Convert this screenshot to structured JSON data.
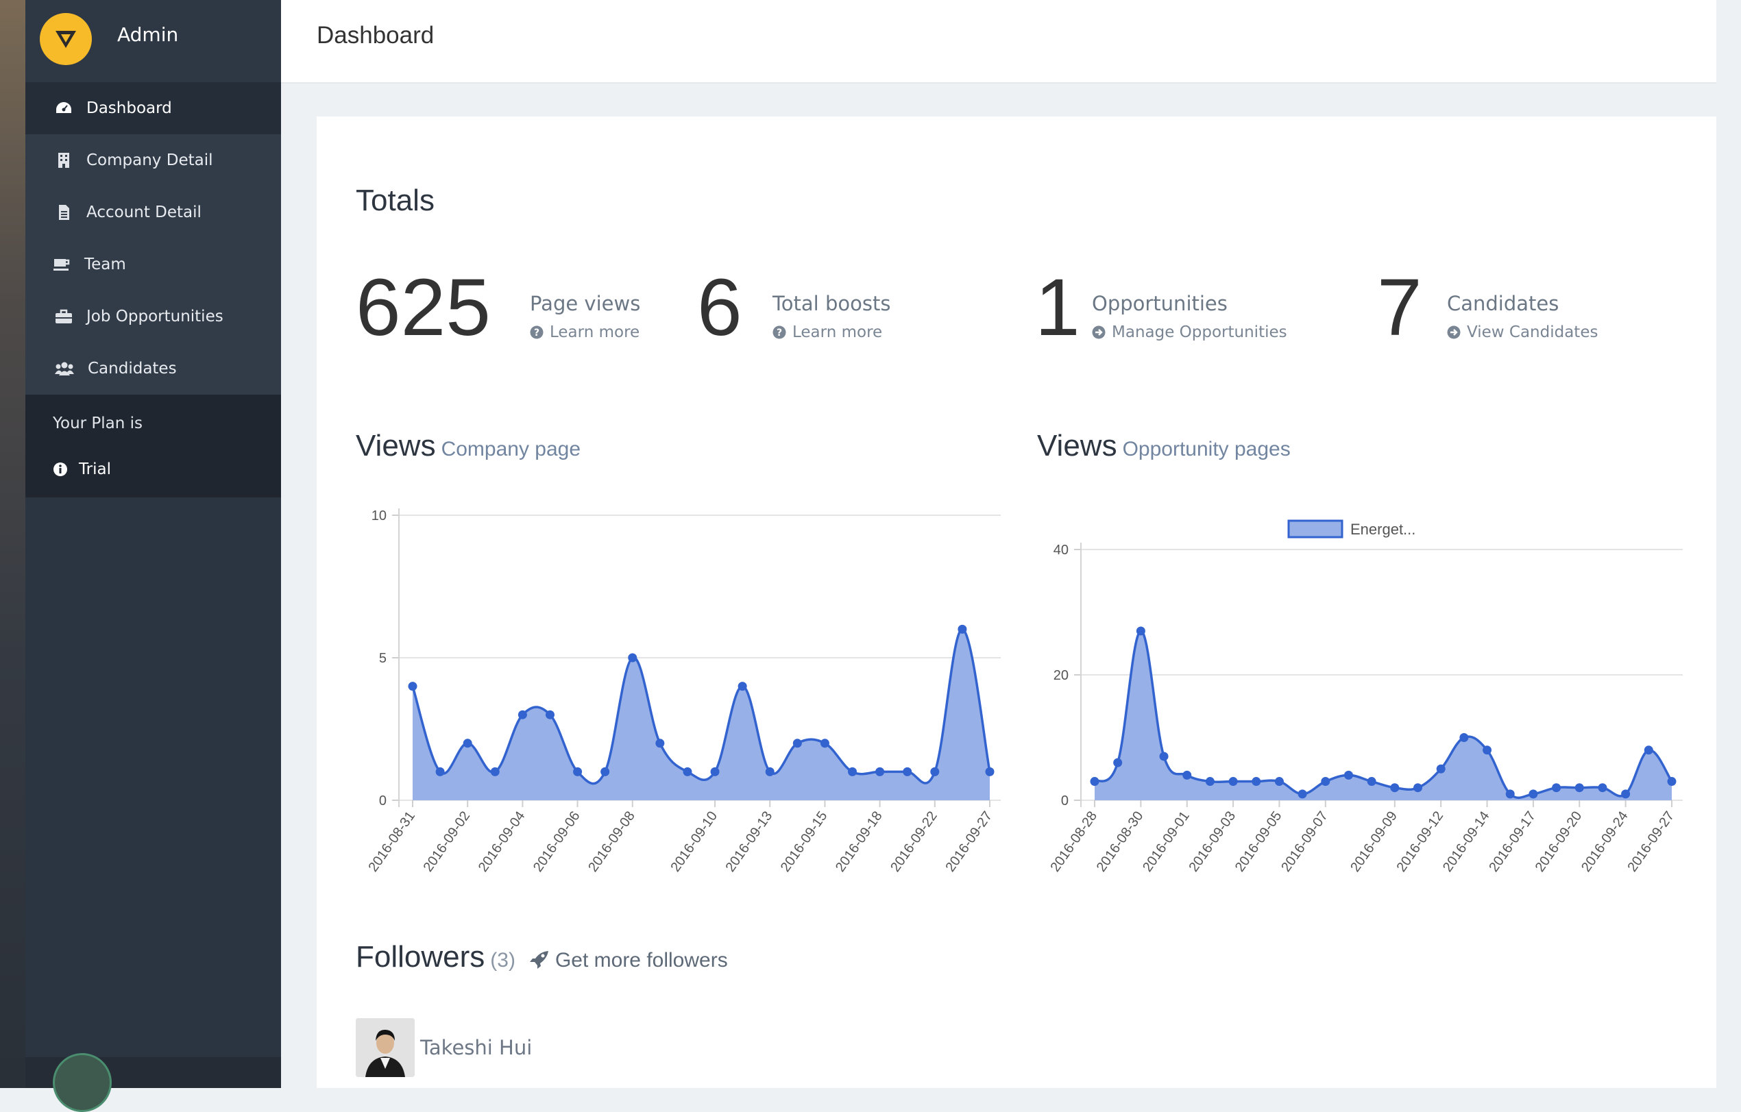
{
  "app": {
    "name": "Admin"
  },
  "header": {
    "title": "Dashboard"
  },
  "sidebar": {
    "items": [
      {
        "label": "Dashboard",
        "icon": "dashboard-icon",
        "active": true
      },
      {
        "label": "Company Detail",
        "icon": "building-icon"
      },
      {
        "label": "Account Detail",
        "icon": "document-icon"
      },
      {
        "label": "Team",
        "icon": "coffee-icon"
      },
      {
        "label": "Job Opportunities",
        "icon": "briefcase-icon"
      },
      {
        "label": "Candidates",
        "icon": "users-icon"
      }
    ],
    "plan": {
      "label": "Your Plan is",
      "value": "Trial",
      "icon": "info-icon"
    }
  },
  "totals": {
    "title": "Totals",
    "stats": [
      {
        "value": "625",
        "label": "Page views",
        "link": "Learn more",
        "link_icon": "question-circle-icon"
      },
      {
        "value": "6",
        "label": "Total boosts",
        "link": "Learn more",
        "link_icon": "question-circle-icon"
      },
      {
        "value": "1",
        "label": "Opportunities",
        "link": "Manage Opportunities",
        "link_icon": "arrow-circle-right-icon"
      },
      {
        "value": "7",
        "label": "Candidates",
        "link": "View Candidates",
        "link_icon": "arrow-circle-right-icon"
      }
    ]
  },
  "views_company": {
    "title": "Views",
    "subtitle": "Company page"
  },
  "views_opportunity": {
    "title": "Views",
    "subtitle": "Opportunity pages"
  },
  "followers": {
    "title": "Followers",
    "count": "(3)",
    "more_label": "Get more followers",
    "people": [
      {
        "name": "Takeshi Hui"
      }
    ]
  },
  "colors": {
    "accent": "#f7bb2a",
    "line": "#3263cf",
    "fill": "#97b0e8",
    "sidebar": "#2b3441"
  },
  "chart_data": [
    {
      "type": "area",
      "title": "",
      "ylim": [
        0,
        10
      ],
      "yticks": [
        0,
        5,
        10
      ],
      "grid": true,
      "xtick_labels": [
        "2016-08-31",
        "2016-09-02",
        "2016-09-04",
        "2016-09-06",
        "2016-09-08",
        "2016-09-10",
        "2016-09-13",
        "2016-09-15",
        "2016-09-18",
        "2016-09-22",
        "2016-09-27"
      ],
      "series": [
        {
          "values": [
            4,
            1,
            2,
            1,
            3,
            3,
            1,
            1,
            5,
            2,
            1,
            1,
            4,
            1,
            2,
            2,
            1,
            1,
            1,
            1,
            6,
            1
          ]
        }
      ]
    },
    {
      "type": "area",
      "title": "",
      "ylim": [
        0,
        40
      ],
      "yticks": [
        0,
        20,
        40
      ],
      "grid": true,
      "legend": "top-center",
      "xtick_labels": [
        "2016-08-28",
        "2016-08-30",
        "2016-09-01",
        "2016-09-03",
        "2016-09-05",
        "2016-09-07",
        "2016-09-09",
        "2016-09-12",
        "2016-09-14",
        "2016-09-17",
        "2016-09-20",
        "2016-09-24",
        "2016-09-27"
      ],
      "series": [
        {
          "name": "Energet...",
          "values": [
            3,
            6,
            27,
            7,
            4,
            3,
            3,
            3,
            3,
            1,
            3,
            4,
            3,
            2,
            2,
            5,
            10,
            8,
            1,
            1,
            2,
            2,
            2,
            1,
            8,
            3
          ]
        }
      ]
    }
  ]
}
